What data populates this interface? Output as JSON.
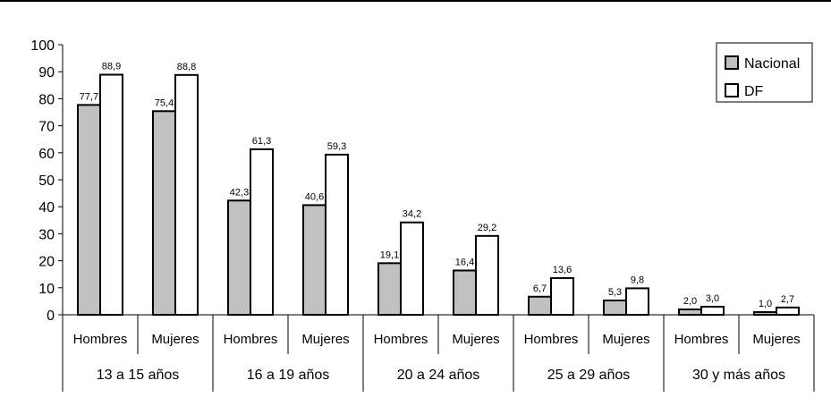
{
  "chart_data": {
    "type": "bar",
    "title": "",
    "xlabel": "",
    "ylabel": "",
    "ylim": [
      0,
      100
    ],
    "yticks": [
      0,
      10,
      20,
      30,
      40,
      50,
      60,
      70,
      80,
      90,
      100
    ],
    "categories": [
      "Hombres",
      "Mujeres",
      "Hombres",
      "Mujeres",
      "Hombres",
      "Mujeres",
      "Hombres",
      "Mujeres",
      "Hombres",
      "Mujeres"
    ],
    "groups": [
      "13 a 15 años",
      "16 a 19 años",
      "20 a 24 años",
      "25 a 29 años",
      "30 y más años"
    ],
    "series": [
      {
        "name": "Nacional",
        "color": "#c0c0c0",
        "values": [
          77.7,
          75.4,
          42.3,
          40.6,
          19.1,
          16.4,
          6.7,
          5.3,
          2.0,
          1.0
        ],
        "labels": [
          "77,7",
          "75,4",
          "42,3",
          "40,6",
          "19,1",
          "16,4",
          "6,7",
          "5,3",
          "2,0",
          "1,0"
        ]
      },
      {
        "name": "DF",
        "color": "#ffffff",
        "values": [
          88.9,
          88.8,
          61.3,
          59.3,
          34.2,
          29.2,
          13.6,
          9.8,
          3.0,
          2.7
        ],
        "labels": [
          "88,9",
          "88,8",
          "61,3",
          "59,3",
          "34,2",
          "29,2",
          "13,6",
          "9,8",
          "3,0",
          "2,7"
        ]
      }
    ],
    "legend": "top-right",
    "grid": false
  }
}
